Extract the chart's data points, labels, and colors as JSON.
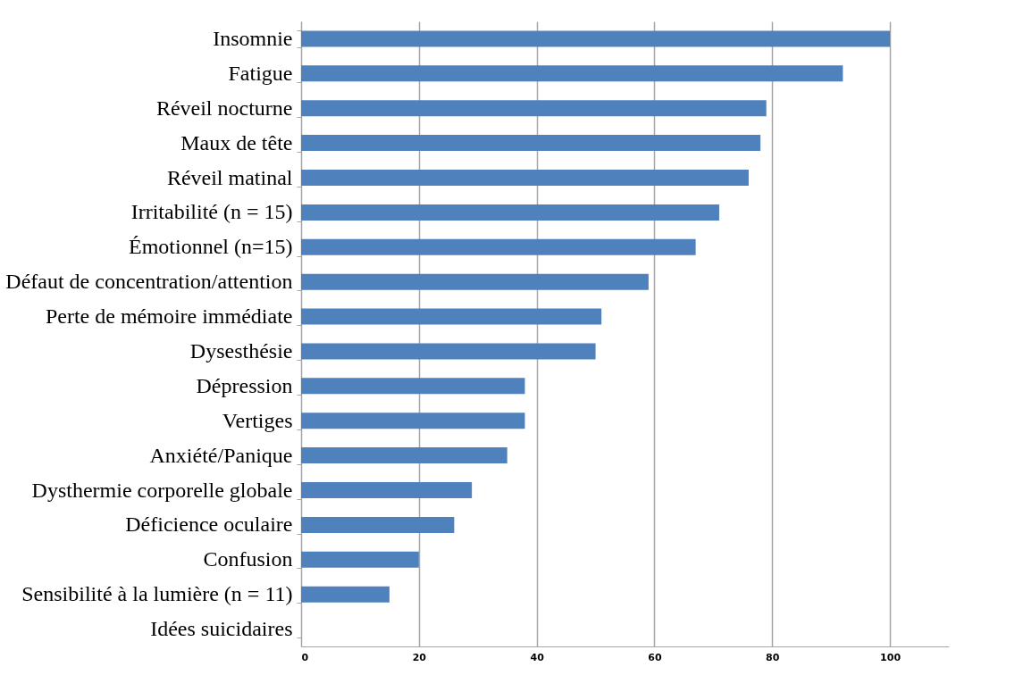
{
  "chart_data": {
    "type": "bar",
    "orientation": "horizontal",
    "categories": [
      "Insomnie",
      "Fatigue",
      "Réveil nocturne",
      "Maux de tête",
      "Réveil matinal",
      "Irritabilité (n = 15)",
      "Émotionnel (n=15)",
      "Défaut de concentration/attention",
      "Perte de mémoire immédiate",
      "Dysesthésie",
      "Dépression",
      "Vertiges",
      "Anxiété/Panique",
      "Dysthermie corporelle globale",
      "Déficience oculaire",
      "Confusion",
      "Sensibilité à la lumière (n = 11)",
      "Idées suicidaires"
    ],
    "values": [
      100,
      92,
      79,
      78,
      76,
      71,
      67,
      59,
      51,
      50,
      38,
      38,
      35,
      29,
      26,
      20,
      15,
      0
    ],
    "color": "#4f81bd",
    "xlim": [
      0,
      110
    ],
    "xticks": [
      0,
      20,
      40,
      60,
      80,
      100
    ],
    "grid": "x"
  }
}
